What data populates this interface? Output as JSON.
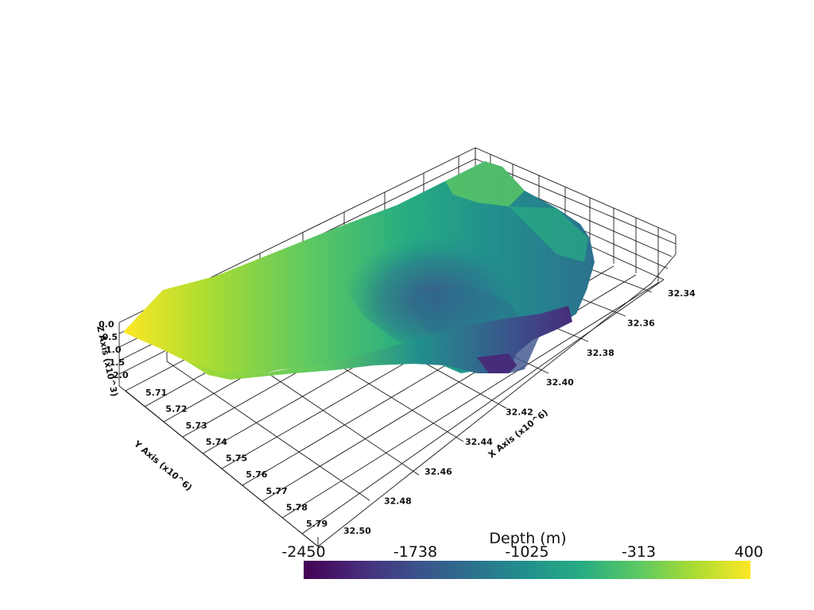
{
  "chart_data": {
    "type": "surface3d",
    "title": "",
    "axes": {
      "x": {
        "label": "X Axis (x10^6)",
        "ticks": [
          "32.34",
          "32.36",
          "32.38",
          "32.40",
          "32.42",
          "32.44",
          "32.46",
          "32.48",
          "32.50"
        ],
        "range": [
          32.34,
          32.5
        ]
      },
      "y": {
        "label": "Y Axis (x10^6)",
        "ticks": [
          "5.71",
          "5.72",
          "5.73",
          "5.74",
          "5.75",
          "5.76",
          "5.77",
          "5.78",
          "5.79"
        ],
        "range": [
          5.71,
          5.79
        ]
      },
      "z": {
        "label": "Z Axis (x10^3)",
        "ticks": [
          "0.0",
          "0.5",
          "1.0",
          "1.5",
          "2.0"
        ],
        "range": [
          0.0,
          2.0
        ]
      }
    },
    "colorbar": {
      "title": "Depth (m)",
      "colormap": "viridis",
      "ticks": [
        "-2450",
        "-1738",
        "-1025",
        "-313",
        "400"
      ],
      "range": [
        -2450,
        400
      ]
    },
    "colors": {
      "viridis": [
        "#440154",
        "#472c7a",
        "#3b518b",
        "#2c718e",
        "#21908d",
        "#27ad81",
        "#5cc863",
        "#aadc32",
        "#fde725"
      ]
    }
  }
}
